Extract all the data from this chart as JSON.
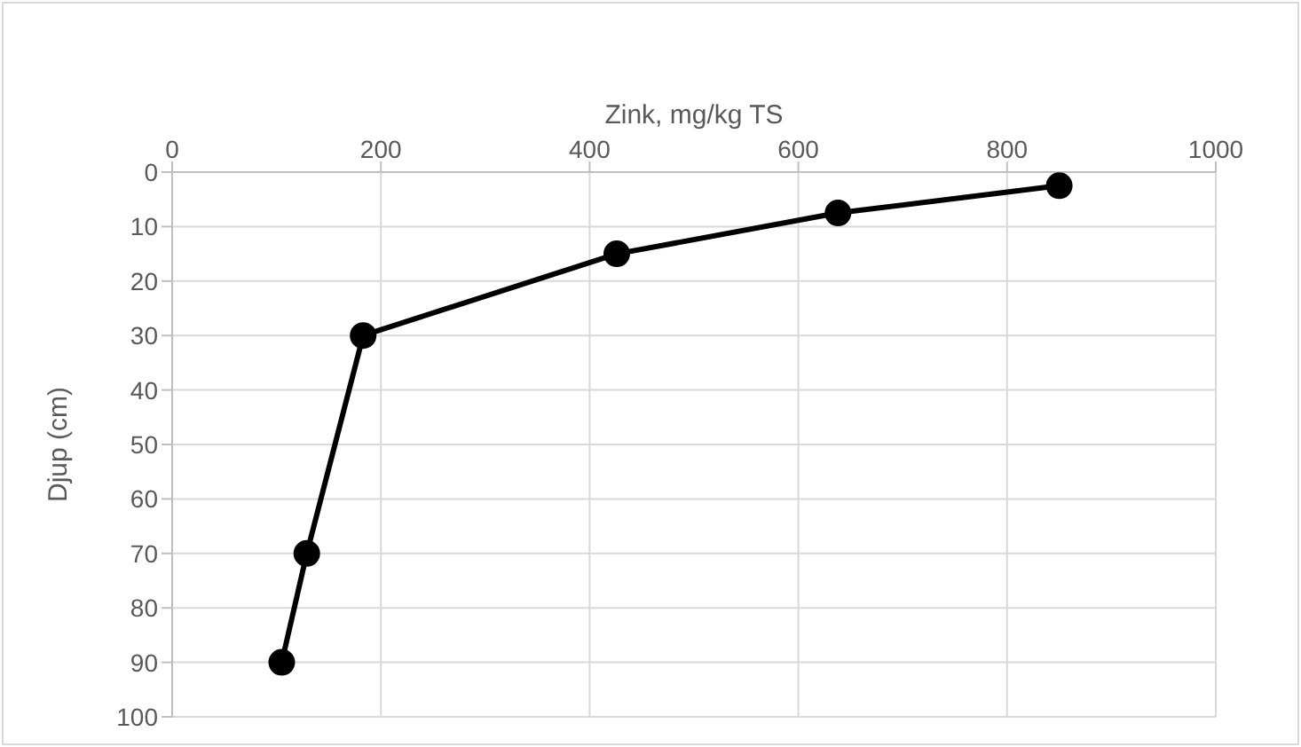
{
  "chart_data": {
    "type": "line",
    "xlabel": "Zink, mg/kg TS",
    "ylabel": "Djup (cm)",
    "x": [
      850,
      638,
      426,
      183,
      129,
      105
    ],
    "series": [
      {
        "color": "#000000",
        "values": [
          2.5,
          7.5,
          15,
          30,
          70,
          90
        ]
      }
    ],
    "xlim": [
      0,
      1000
    ],
    "xticks": [
      0,
      200,
      400,
      600,
      800,
      1000
    ],
    "ylim": [
      100,
      0
    ],
    "yticks": [
      0,
      10,
      20,
      30,
      40,
      50,
      60,
      70,
      80,
      90,
      100
    ],
    "grid": true,
    "marker": "circle",
    "line_style": "solid"
  }
}
